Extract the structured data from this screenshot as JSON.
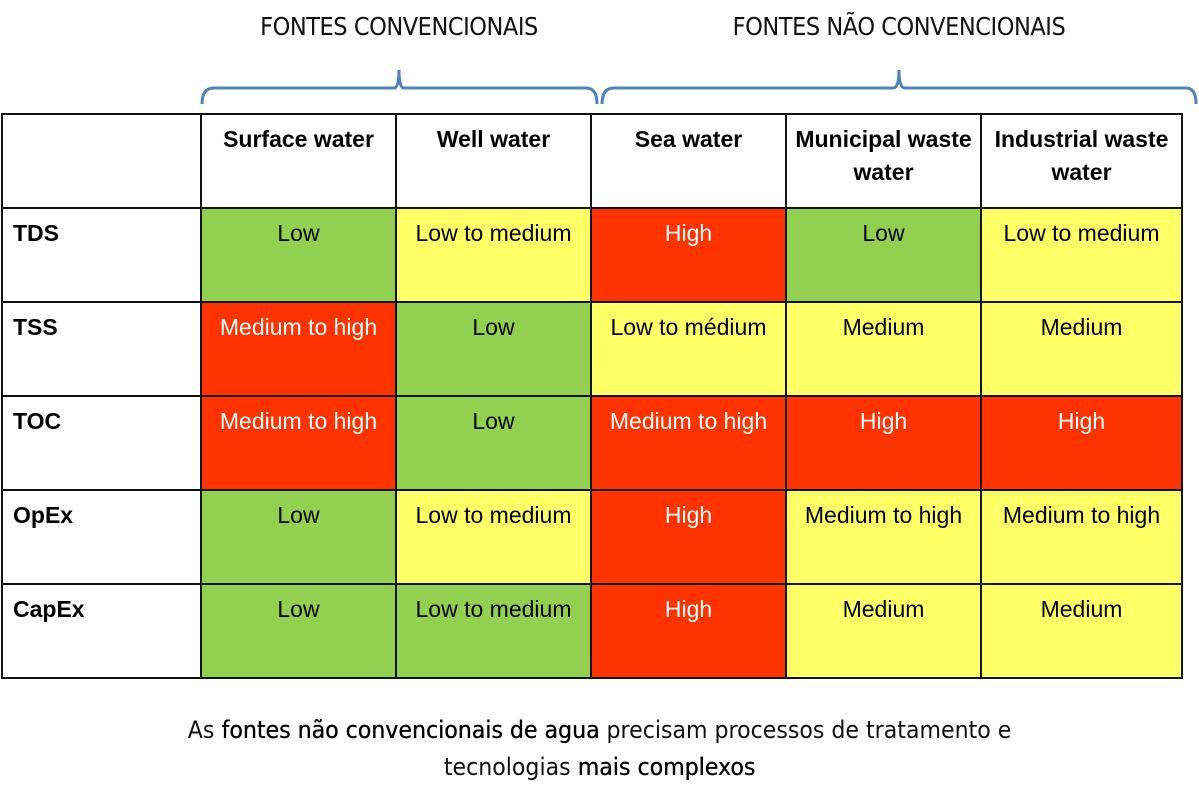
{
  "groups": [
    {
      "title": "FONTES CONVENCIONAIS"
    },
    {
      "title": "FONTES NÃO CONVENCIONAIS"
    }
  ],
  "colors": {
    "low": "#92d050",
    "medium": "#ffff66",
    "high": "#ff3300",
    "brace": "#4f81bd"
  },
  "columns": [
    "Surface water",
    "Well water",
    "Sea water",
    "Municipal waste water",
    "Industrial waste water"
  ],
  "rows": [
    {
      "label": "TDS",
      "cells": [
        {
          "text": "Low",
          "level": "green"
        },
        {
          "text": "Low to medium",
          "level": "yellow"
        },
        {
          "text": "High",
          "level": "red"
        },
        {
          "text": "Low",
          "level": "green"
        },
        {
          "text": "Low to medium",
          "level": "yellow"
        }
      ]
    },
    {
      "label": "TSS",
      "cells": [
        {
          "text": "Medium to high",
          "level": "red"
        },
        {
          "text": "Low",
          "level": "green"
        },
        {
          "text": "Low to médium",
          "level": "yellow"
        },
        {
          "text": "Medium",
          "level": "yellow"
        },
        {
          "text": "Medium",
          "level": "yellow"
        }
      ]
    },
    {
      "label": "TOC",
      "cells": [
        {
          "text": "Medium to high",
          "level": "red"
        },
        {
          "text": "Low",
          "level": "green"
        },
        {
          "text": "Medium to high",
          "level": "red"
        },
        {
          "text": "High",
          "level": "red"
        },
        {
          "text": "High",
          "level": "red"
        }
      ]
    },
    {
      "label": "OpEx",
      "cells": [
        {
          "text": "Low",
          "level": "green"
        },
        {
          "text": "Low to medium",
          "level": "yellow"
        },
        {
          "text": "High",
          "level": "red"
        },
        {
          "text": "Medium to high",
          "level": "yellow"
        },
        {
          "text": "Medium to high",
          "level": "yellow"
        }
      ]
    },
    {
      "label": "CapEx",
      "cells": [
        {
          "text": "Low",
          "level": "green"
        },
        {
          "text": "Low to medium",
          "level": "green"
        },
        {
          "text": "High",
          "level": "red"
        },
        {
          "text": "Medium",
          "level": "yellow"
        },
        {
          "text": "Medium",
          "level": "yellow"
        }
      ]
    }
  ],
  "caption": {
    "p1": "As ",
    "b1": "fontes não convencionais de agua",
    "p2": " precisam processos de tratamento e ",
    "p3": "tecnologias ",
    "b2": "mais complexos"
  }
}
